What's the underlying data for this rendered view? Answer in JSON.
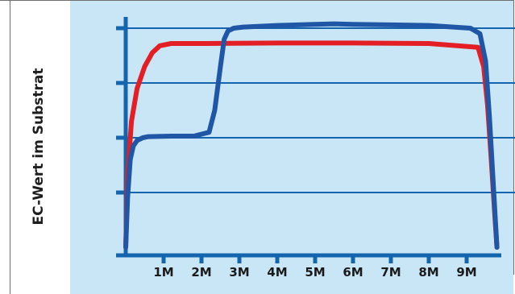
{
  "chart_data": {
    "type": "line",
    "title": "",
    "xlabel": "",
    "ylabel": "EC-Wert im Substrat",
    "x_ticks": [
      "1M",
      "2M",
      "3M",
      "4M",
      "5M",
      "6M",
      "7M",
      "8M",
      "9M"
    ],
    "xlim": [
      0,
      10
    ],
    "ylim": [
      0,
      4
    ],
    "grid": true,
    "series": [
      {
        "color": "#e31e24",
        "x": [
          0,
          0.05,
          0.15,
          0.3,
          0.5,
          0.7,
          0.9,
          1.2,
          2,
          4,
          5,
          6,
          8,
          9.3,
          9.45,
          9.55,
          9.65,
          9.75,
          9.8
        ],
        "y": [
          0,
          1.3,
          2.3,
          2.9,
          3.3,
          3.55,
          3.68,
          3.72,
          3.72,
          3.73,
          3.73,
          3.73,
          3.72,
          3.65,
          3.3,
          2.6,
          1.6,
          0.5,
          0
        ]
      },
      {
        "color": "#1f57a6",
        "x": [
          0,
          0.05,
          0.12,
          0.2,
          0.3,
          0.45,
          0.6,
          1.2,
          1.8,
          2.2,
          2.35,
          2.5,
          2.6,
          2.7,
          2.85,
          3.1,
          4,
          5,
          5.5,
          6,
          7,
          8,
          9.1,
          9.35,
          9.5,
          9.6,
          9.7,
          9.8
        ],
        "y": [
          0,
          0.9,
          1.6,
          1.85,
          1.95,
          2,
          2.02,
          2.03,
          2.03,
          2.1,
          2.5,
          3.3,
          3.8,
          3.95,
          4.0,
          4.02,
          4.05,
          4.07,
          4.08,
          4.07,
          4.06,
          4.05,
          4.0,
          3.9,
          3.4,
          2.4,
          1.2,
          0
        ]
      }
    ]
  }
}
